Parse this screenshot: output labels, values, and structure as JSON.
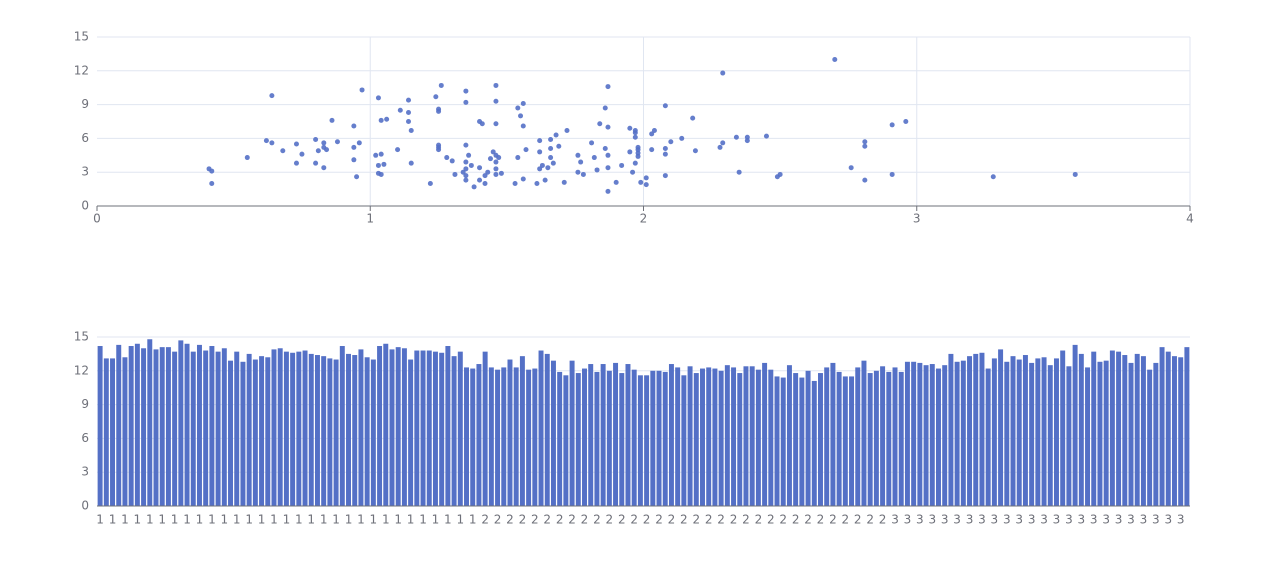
{
  "chart_data": [
    {
      "type": "scatter",
      "color": "#5470c6",
      "grid": true,
      "xlim": [
        0,
        4
      ],
      "xticks": [
        0,
        1,
        2,
        3,
        4
      ],
      "ylim": [
        0,
        15
      ],
      "yticks": [
        0,
        3,
        6,
        9,
        12,
        15
      ],
      "x": [
        0.41,
        0.42,
        0.42,
        0.55,
        0.62,
        0.64,
        0.64,
        0.68,
        0.73,
        0.73,
        0.75,
        0.8,
        0.8,
        0.81,
        0.83,
        0.83,
        0.83,
        0.84,
        0.86,
        0.88,
        0.94,
        0.94,
        0.94,
        0.95,
        0.96,
        0.97,
        1.02,
        1.03,
        1.03,
        1.03,
        1.04,
        1.04,
        1.05,
        1.04,
        1.06,
        1.1,
        1.11,
        1.14,
        1.14,
        1.14,
        1.15,
        1.15,
        1.22,
        1.24,
        1.25,
        1.25,
        1.25,
        1.25,
        1.25,
        1.26,
        1.28,
        1.3,
        1.31,
        1.34,
        1.35,
        1.35,
        1.35,
        1.35,
        1.35,
        1.35,
        1.35,
        1.36,
        1.37,
        1.38,
        1.4,
        1.41,
        1.4,
        1.4,
        1.42,
        1.42,
        1.43,
        1.44,
        1.45,
        1.46,
        1.46,
        1.46,
        1.46,
        1.46,
        1.46,
        1.46,
        1.47,
        1.48,
        1.53,
        1.54,
        1.54,
        1.55,
        1.56,
        1.56,
        1.56,
        1.57,
        1.61,
        1.62,
        1.62,
        1.62,
        1.63,
        1.64,
        1.65,
        1.66,
        1.66,
        1.66,
        1.67,
        1.68,
        1.69,
        1.71,
        1.72,
        1.76,
        1.76,
        1.77,
        1.78,
        1.81,
        1.82,
        1.83,
        1.84,
        1.86,
        1.86,
        1.87,
        1.87,
        1.87,
        1.87,
        1.87,
        1.9,
        1.92,
        1.95,
        1.95,
        1.96,
        1.97,
        1.97,
        1.97,
        1.97,
        1.98,
        1.98,
        1.98,
        1.98,
        1.99,
        2.01,
        2.01,
        2.03,
        2.03,
        2.04,
        2.08,
        2.08,
        2.08,
        2.08,
        2.1,
        2.14,
        2.18,
        2.19,
        2.28,
        2.29,
        2.29,
        2.34,
        2.35,
        2.38,
        2.38,
        2.45,
        2.49,
        2.5,
        2.7,
        2.76,
        2.81,
        2.81,
        2.81,
        2.91,
        2.91,
        2.96,
        3.28,
        3.58
      ],
      "values": [
        3.3,
        3.1,
        2.0,
        4.3,
        5.8,
        9.8,
        5.6,
        4.9,
        5.5,
        3.8,
        4.6,
        5.9,
        3.8,
        4.9,
        5.6,
        5.2,
        3.4,
        5.0,
        7.6,
        5.7,
        7.1,
        5.2,
        4.1,
        2.6,
        5.6,
        10.3,
        4.5,
        9.6,
        3.6,
        2.9,
        7.6,
        4.6,
        3.7,
        2.8,
        7.7,
        5.0,
        8.5,
        9.4,
        8.3,
        7.5,
        6.7,
        3.8,
        2.0,
        9.7,
        8.6,
        8.4,
        5.4,
        5.2,
        5.0,
        10.7,
        4.3,
        4.0,
        2.8,
        3.0,
        10.2,
        9.2,
        5.4,
        3.9,
        3.3,
        2.7,
        2.3,
        4.5,
        3.6,
        1.7,
        7.5,
        7.3,
        3.4,
        2.3,
        2.7,
        2.0,
        3.0,
        4.2,
        4.8,
        4.5,
        10.7,
        9.3,
        7.3,
        3.9,
        3.3,
        2.8,
        4.3,
        2.9,
        2.0,
        4.3,
        8.7,
        8.0,
        9.1,
        7.1,
        2.4,
        5.0,
        2.0,
        5.8,
        4.8,
        3.3,
        3.6,
        2.3,
        3.4,
        5.9,
        5.1,
        4.3,
        3.8,
        6.3,
        5.3,
        2.1,
        6.7,
        4.5,
        3.0,
        3.9,
        2.8,
        5.6,
        4.3,
        3.2,
        7.3,
        8.7,
        5.1,
        10.6,
        7.0,
        4.5,
        3.4,
        1.3,
        2.1,
        3.6,
        6.9,
        4.8,
        3.0,
        6.5,
        6.7,
        6.1,
        3.8,
        5.2,
        4.7,
        4.4,
        5.0,
        2.1,
        2.5,
        1.9,
        6.4,
        5.0,
        6.7,
        8.9,
        5.1,
        4.6,
        2.7,
        5.7,
        6.0,
        7.8,
        4.9,
        5.2,
        5.6,
        11.8,
        6.1,
        3.0,
        6.1,
        5.8,
        6.2,
        2.6,
        2.8,
        13.0,
        3.4,
        5.7,
        5.3,
        2.3,
        7.2,
        2.8,
        7.5,
        2.6,
        2.8
      ]
    },
    {
      "type": "bar",
      "color": "#5470c6",
      "grid": true,
      "ylim": [
        0,
        15
      ],
      "yticks": [
        0,
        3,
        6,
        9,
        12,
        15
      ],
      "categories": [
        "1",
        null,
        "1",
        null,
        "1",
        null,
        "1",
        null,
        "1",
        null,
        "1",
        null,
        "1",
        null,
        "1",
        null,
        "1",
        null,
        "1",
        null,
        "1",
        null,
        "1",
        null,
        "1",
        null,
        "1",
        null,
        "1",
        null,
        "1",
        null,
        "1",
        null,
        "1",
        null,
        "1",
        null,
        "1",
        null,
        "1",
        null,
        "1",
        null,
        "1",
        null,
        "1",
        null,
        "1",
        null,
        "1",
        null,
        "1",
        null,
        "1",
        null,
        "1",
        null,
        "1",
        null,
        "1",
        null,
        "2",
        null,
        "2",
        null,
        "2",
        null,
        "2",
        null,
        "2",
        null,
        "2",
        null,
        "2",
        null,
        "2",
        null,
        "2",
        null,
        "2",
        null,
        "2",
        null,
        "2",
        null,
        "2",
        null,
        "2",
        null,
        "2",
        null,
        "2",
        null,
        "2",
        null,
        "2",
        null,
        "2",
        null,
        "2",
        null,
        "2",
        null,
        "2",
        null,
        "2",
        null,
        "2",
        null,
        "2",
        null,
        "2",
        null,
        "2",
        null,
        "2",
        null,
        "2",
        null,
        "2",
        null,
        "2",
        null,
        "2",
        null,
        "2",
        null,
        "3",
        null,
        "3",
        null,
        "3",
        null,
        "3",
        null,
        "3",
        null,
        "3",
        null,
        "3",
        null,
        "3",
        null,
        "3",
        null,
        "3",
        null,
        "3",
        null,
        "3",
        null,
        "3",
        null,
        "3",
        null,
        "3",
        null,
        "3",
        null,
        "3",
        null,
        "3",
        null,
        "3",
        null,
        "3",
        null,
        "3",
        null,
        "3",
        null,
        "3",
        null,
        "3",
        null
      ],
      "values": [
        14.2,
        13.1,
        13.1,
        14.3,
        13.2,
        14.2,
        14.4,
        14.0,
        14.8,
        13.9,
        14.1,
        14.1,
        13.7,
        14.7,
        14.4,
        13.7,
        14.3,
        13.8,
        14.2,
        13.7,
        14.0,
        12.9,
        13.7,
        12.8,
        13.5,
        13.0,
        13.3,
        13.2,
        13.9,
        14.0,
        13.7,
        13.6,
        13.7,
        13.8,
        13.5,
        13.4,
        13.3,
        13.1,
        13.0,
        14.2,
        13.5,
        13.4,
        13.9,
        13.2,
        13.0,
        14.2,
        14.4,
        13.9,
        14.1,
        14.0,
        13.0,
        13.8,
        13.8,
        13.8,
        13.7,
        13.6,
        14.2,
        13.3,
        13.7,
        12.3,
        12.2,
        12.6,
        13.7,
        12.3,
        12.1,
        12.3,
        13.0,
        12.3,
        13.3,
        12.1,
        12.2,
        13.8,
        13.5,
        12.9,
        11.9,
        11.6,
        12.9,
        11.8,
        12.2,
        12.6,
        11.9,
        12.6,
        12.0,
        12.7,
        11.8,
        12.6,
        12.1,
        11.6,
        11.6,
        12.0,
        12.0,
        11.9,
        12.6,
        12.3,
        11.6,
        12.4,
        11.8,
        12.2,
        12.3,
        12.2,
        12.0,
        12.5,
        12.3,
        11.8,
        12.4,
        12.4,
        12.1,
        12.7,
        12.1,
        11.5,
        11.4,
        12.5,
        11.8,
        11.4,
        12.0,
        11.1,
        11.8,
        12.3,
        12.7,
        11.9,
        11.5,
        11.5,
        12.3,
        12.9,
        11.8,
        12.0,
        12.4,
        11.9,
        12.3,
        11.9,
        12.8,
        12.8,
        12.7,
        12.5,
        12.6,
        12.2,
        12.5,
        13.5,
        12.8,
        12.9,
        13.3,
        13.5,
        13.6,
        12.2,
        13.1,
        13.9,
        12.8,
        13.3,
        13.0,
        13.4,
        12.7,
        13.1,
        13.2,
        12.5,
        13.1,
        13.8,
        12.4,
        14.3,
        13.5,
        12.3,
        13.7,
        12.8,
        12.9,
        13.8,
        13.7,
        13.4,
        12.7,
        13.5,
        13.3,
        12.1,
        12.7,
        14.1,
        13.7,
        13.3,
        13.2,
        14.1
      ]
    }
  ]
}
